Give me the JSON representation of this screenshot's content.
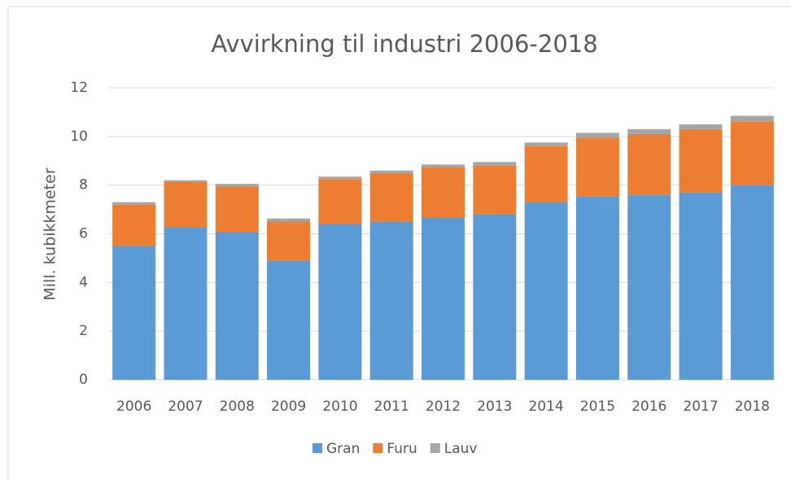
{
  "chart_data": {
    "type": "stacked_bar",
    "title": "Avvirkning til industri 2006-2018",
    "y_label": "Mill. kubikkmeter",
    "categories": [
      "2006",
      "2007",
      "2008",
      "2009",
      "2010",
      "2011",
      "2012",
      "2013",
      "2014",
      "2015",
      "2016",
      "2017",
      "2018"
    ],
    "series": [
      {
        "name": "Gran",
        "color": "#5b9bd5",
        "values": [
          5.5,
          6.25,
          6.05,
          4.9,
          6.4,
          6.5,
          6.65,
          6.8,
          7.3,
          7.55,
          7.6,
          7.7,
          8.0
        ]
      },
      {
        "name": "Furu",
        "color": "#ed7d31",
        "values": [
          1.7,
          1.9,
          1.9,
          1.6,
          1.85,
          2.0,
          2.1,
          2.0,
          2.3,
          2.4,
          2.5,
          2.6,
          2.6
        ]
      },
      {
        "name": "Lauv",
        "color": "#a5a5a5",
        "values": [
          0.1,
          0.05,
          0.1,
          0.13,
          0.1,
          0.1,
          0.1,
          0.15,
          0.15,
          0.2,
          0.2,
          0.2,
          0.25
        ]
      }
    ],
    "ylim": [
      0,
      12
    ],
    "yticks": [
      0,
      2,
      4,
      6,
      8,
      10,
      12
    ],
    "grid": true,
    "legend": "bottom"
  }
}
